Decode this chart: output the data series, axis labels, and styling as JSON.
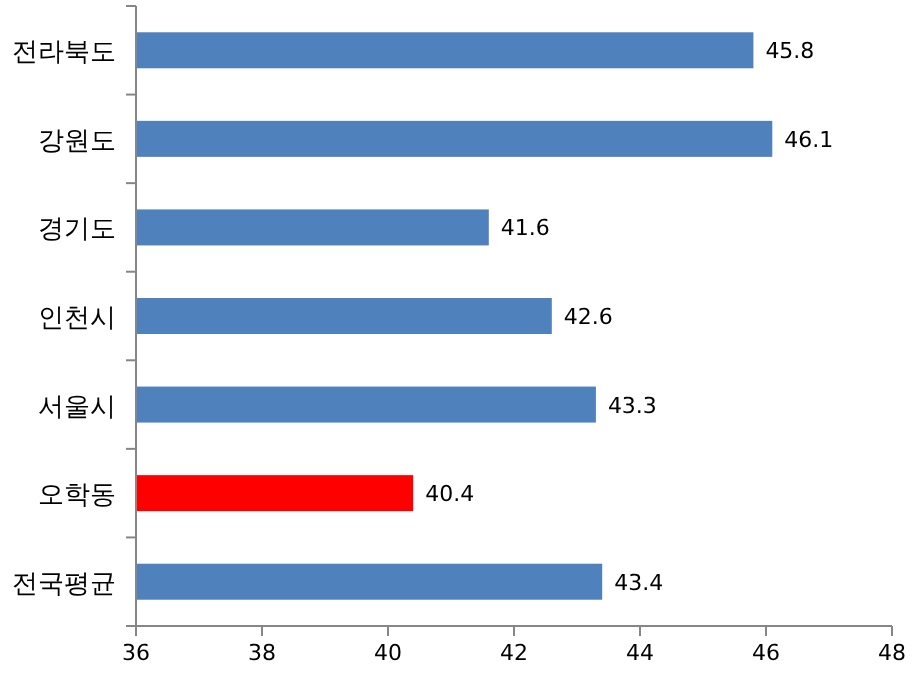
{
  "chart_data": {
    "type": "bar",
    "orientation": "horizontal",
    "categories": [
      "전라북도",
      "강원도",
      "경기도",
      "인천시",
      "서울시",
      "오학동",
      "전국평균"
    ],
    "values": [
      45.8,
      46.1,
      41.6,
      42.6,
      43.3,
      40.4,
      43.4
    ],
    "colors": [
      "#4f81bd",
      "#4f81bd",
      "#4f81bd",
      "#4f81bd",
      "#4f81bd",
      "#ff0000",
      "#4f81bd"
    ],
    "xlim": [
      36,
      48
    ],
    "xticks": [
      36,
      38,
      40,
      42,
      44,
      46,
      48
    ],
    "data_labels": true
  }
}
